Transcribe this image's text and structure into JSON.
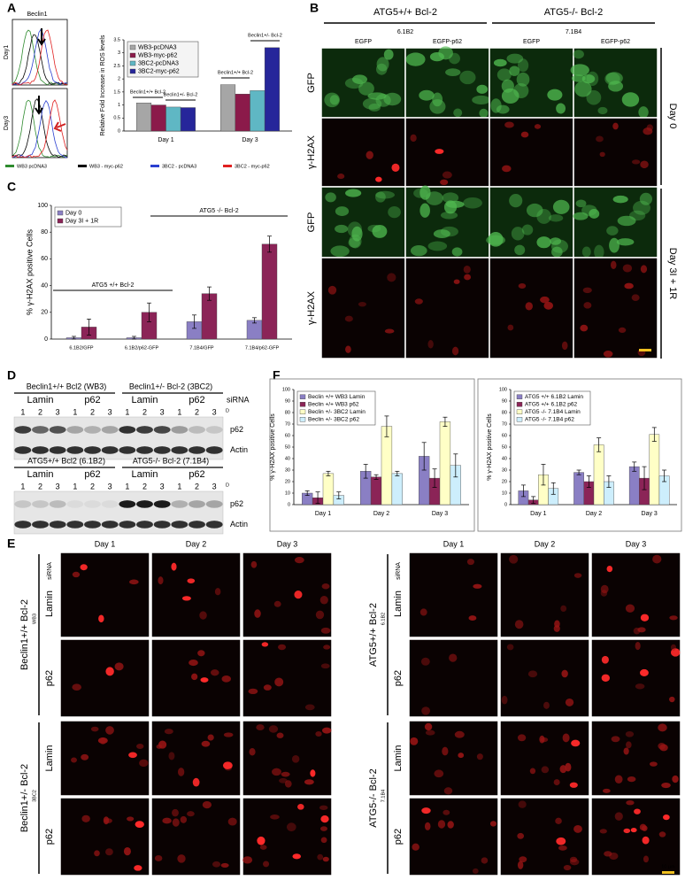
{
  "panels": {
    "A": {
      "label": "A",
      "histogram": {
        "title": "Beclin1",
        "rows": [
          "Day1",
          "Day3"
        ]
      },
      "legend": [
        {
          "name": "WB3 pcDNA3",
          "color": "#2e8b2e"
        },
        {
          "name": "WB3 - myc-p62",
          "color": "#000000"
        },
        {
          "name": "3BC2 - pcDNA3",
          "color": "#2a3fd0"
        },
        {
          "name": "3BC2 - myc-p62",
          "color": "#e02020"
        }
      ]
    },
    "B": {
      "label": "B",
      "groups": [
        "ATG5+/+ Bcl-2",
        "ATG5-/- Bcl-2"
      ],
      "clones": [
        "6.1B2",
        "7.1B4"
      ],
      "columns": [
        "EGFP",
        "EGFP-p62",
        "EGFP",
        "EGFP-p62"
      ],
      "rows": [
        "GFP",
        "γ-H2AX",
        "GFP",
        "γ-H2AX"
      ],
      "days": [
        "Day 0",
        "Day 3I + 1R"
      ],
      "scale": "10 µm"
    },
    "C": {
      "label": "C"
    },
    "D": {
      "label": "D",
      "blots": [
        {
          "groups": [
            "Beclin1+/+ Bcl2 (WB3)",
            "Beclin1+/- Bcl-2 (3BC2)"
          ],
          "conditions": [
            "Lamin",
            "p62",
            "Lamin",
            "p62"
          ],
          "siRNA": "siRNA",
          "lanes": [
            "1",
            "2",
            "3",
            "1",
            "2",
            "3",
            "1",
            "2",
            "3",
            "1",
            "2",
            "3"
          ],
          "day": "D",
          "bands": [
            "p62",
            "Actin"
          ]
        },
        {
          "groups": [
            "ATG5+/+ Bcl2 (6.1B2)",
            "ATG5-/- Bcl-2 (7.1B4)"
          ],
          "conditions": [
            "Lamin",
            "p62",
            "Lamin",
            "p62"
          ],
          "lanes": [
            "1",
            "2",
            "3",
            "1",
            "2",
            "3",
            "1",
            "2",
            "3",
            "1",
            "2",
            "3"
          ],
          "day": "D",
          "bands": [
            "p62",
            "Actin"
          ]
        }
      ]
    },
    "E": {
      "label": "E",
      "blocks": [
        {
          "days": [
            "Day 1",
            "Day 2",
            "Day 3"
          ],
          "siRNA": "siRNA",
          "groups": [
            {
              "name": "Beclin1+/+ Bcl-2",
              "clone": "WB3",
              "rows": [
                "Lamin",
                "p62"
              ]
            },
            {
              "name": "Beclin1+/- Bcl-2",
              "clone": "3BC2",
              "rows": [
                "Lamin",
                "p62"
              ]
            }
          ]
        },
        {
          "days": [
            "Day 1",
            "Day 2",
            "Day 3"
          ],
          "siRNA": "siRNA",
          "groups": [
            {
              "name": "ATG5+/+ Bcl-2",
              "clone": "6.1B2",
              "rows": [
                "Lamin",
                "p62"
              ]
            },
            {
              "name": "ATG5-/- Bcl-2",
              "clone": "7.1B4",
              "rows": [
                "Lamin",
                "p62"
              ]
            }
          ]
        }
      ],
      "scale": "10 µm"
    },
    "F": {
      "label": "F"
    }
  },
  "chart_data": [
    {
      "type": "bar",
      "y_label": "Relative Fold Increase in ROS levels",
      "categories": [
        "Day 1",
        "Day 3"
      ],
      "series": [
        {
          "name": "WB3-pcDNA3",
          "color": "#a6a6a6",
          "values": [
            1.08,
            1.78
          ]
        },
        {
          "name": "WB3-myc-p62",
          "color": "#8b1a4a",
          "values": [
            1.0,
            1.42
          ]
        },
        {
          "name": "3BC2-pcDNA3",
          "color": "#5fb7c4",
          "values": [
            0.92,
            1.55
          ]
        },
        {
          "name": "3BC2-myc-p62",
          "color": "#26269a",
          "values": [
            0.9,
            3.2
          ]
        }
      ],
      "annotations": [
        "Beclin1+/+ Bcl-2",
        "Beclin1+/- Bcl-2",
        "Beclin1+/+ Bcl-2",
        "Beclin1+/- Bcl-2"
      ],
      "ylim": [
        0,
        3.5
      ],
      "yticks": [
        0,
        0.5,
        1,
        1.5,
        2,
        2.5,
        3,
        3.5
      ],
      "legend": "top-left",
      "grid": false
    },
    {
      "type": "bar",
      "y_label": "% γ-H2AX positive Cells",
      "categories": [
        "6.1B2/GFP",
        "6.1B2/p62-GFP",
        "7.1B4/GFP",
        "7.1B4/p62-GFP"
      ],
      "series": [
        {
          "name": "Day 0",
          "color": "#8a7fc4",
          "values": [
            1,
            1,
            13,
            14
          ],
          "errors": [
            1,
            1,
            5,
            2
          ]
        },
        {
          "name": "Day 3I + 1R",
          "color": "#8b2457",
          "values": [
            9,
            20,
            34,
            71
          ],
          "errors": [
            6,
            7,
            5,
            6
          ]
        }
      ],
      "annotations": [
        "ATG5 +/+ Bcl-2",
        "ATG5 -/- Bcl-2"
      ],
      "ylim": [
        0,
        100
      ],
      "yticks": [
        0,
        20,
        40,
        60,
        80,
        100
      ],
      "legend": "top-left",
      "grid": false
    },
    {
      "type": "bar",
      "y_label": "% γ-H2AX positive Cells",
      "categories": [
        "Day 1",
        "Day 2",
        "Day 3"
      ],
      "series": [
        {
          "name": "Beclin +/+ WB3 Lamin",
          "color": "#8a7fc4",
          "values": [
            10,
            29,
            42
          ],
          "errors": [
            2,
            6,
            12
          ]
        },
        {
          "name": "Beclin +/+ WB3 p62",
          "color": "#8b2457",
          "values": [
            6,
            24,
            23
          ],
          "errors": [
            5,
            2,
            8
          ]
        },
        {
          "name": "Beclin +/- 3BC2 Lamin",
          "color": "#ffffc6",
          "values": [
            27,
            68,
            72
          ],
          "errors": [
            2,
            9,
            4
          ]
        },
        {
          "name": "Beclin +/- 3BC2 p62",
          "color": "#cdeefc",
          "values": [
            8,
            27,
            34
          ],
          "errors": [
            3,
            2,
            10
          ]
        }
      ],
      "ylim": [
        0,
        100
      ],
      "yticks": [
        0,
        10,
        20,
        30,
        40,
        50,
        60,
        70,
        80,
        90,
        100
      ],
      "legend": "top-left",
      "grid": false
    },
    {
      "type": "bar",
      "y_label": "% γ-H2AX positive Cells",
      "categories": [
        "Day 1",
        "Day 2",
        "Day 3"
      ],
      "series": [
        {
          "name": "ATG5 +/+ 6.1B2 Lamin",
          "color": "#8a7fc4",
          "values": [
            12,
            28,
            33
          ],
          "errors": [
            5,
            2,
            4
          ]
        },
        {
          "name": "ATG5 +/+ 6.1B2 p62",
          "color": "#8b2457",
          "values": [
            4,
            20,
            23
          ],
          "errors": [
            3,
            5,
            10
          ]
        },
        {
          "name": "ATG5 -/- 7.1B4 Lamin",
          "color": "#ffffc6",
          "values": [
            26,
            52,
            61
          ],
          "errors": [
            9,
            6,
            6
          ]
        },
        {
          "name": "ATG5 -/- 7.1B4 p62",
          "color": "#cdeefc",
          "values": [
            14,
            20,
            25
          ],
          "errors": [
            5,
            5,
            5
          ]
        }
      ],
      "ylim": [
        0,
        100
      ],
      "yticks": [
        0,
        10,
        20,
        30,
        40,
        50,
        60,
        70,
        80,
        90,
        100
      ],
      "legend": "top-left",
      "grid": false
    }
  ]
}
